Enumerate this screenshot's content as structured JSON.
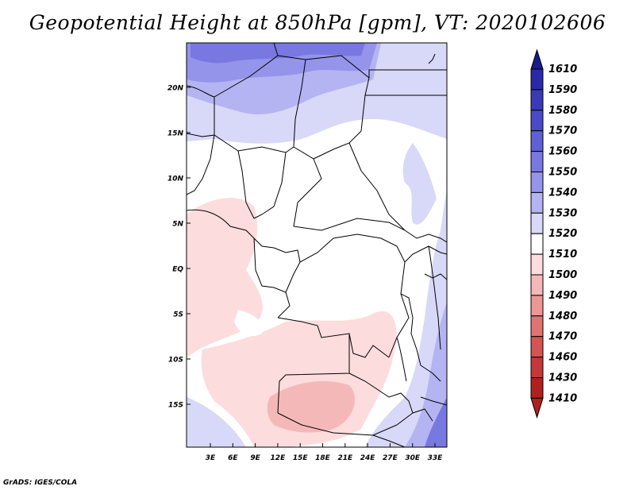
{
  "title": "Geopotential Height at 850hPa [gpm], VT: 2020102606",
  "credit": "GrADS: IGES/COLA",
  "lat_labels": [
    "20N",
    "15N",
    "10N",
    "5N",
    "EQ",
    "5S",
    "10S",
    "15S"
  ],
  "lon_labels": [
    "3E",
    "6E",
    "9E",
    "12E",
    "15E",
    "18E",
    "21E",
    "24E",
    "27E",
    "30E",
    "33E"
  ],
  "colorbar": {
    "levels": [
      "1610",
      "1590",
      "1580",
      "1570",
      "1560",
      "1550",
      "1540",
      "1530",
      "1520",
      "1510",
      "1500",
      "1490",
      "1480",
      "1470",
      "1460",
      "1430",
      "1410"
    ],
    "colors": [
      "#1a1a8c",
      "#2a2aa8",
      "#3a3ab8",
      "#4a4ac8",
      "#5f5fd6",
      "#7878e0",
      "#9494ea",
      "#b4b4f2",
      "#d8d8f8",
      "#ffffff",
      "#fcdcdc",
      "#f5b8b8",
      "#ec9696",
      "#e07474",
      "#d45454",
      "#c43838",
      "#b02020"
    ]
  }
}
